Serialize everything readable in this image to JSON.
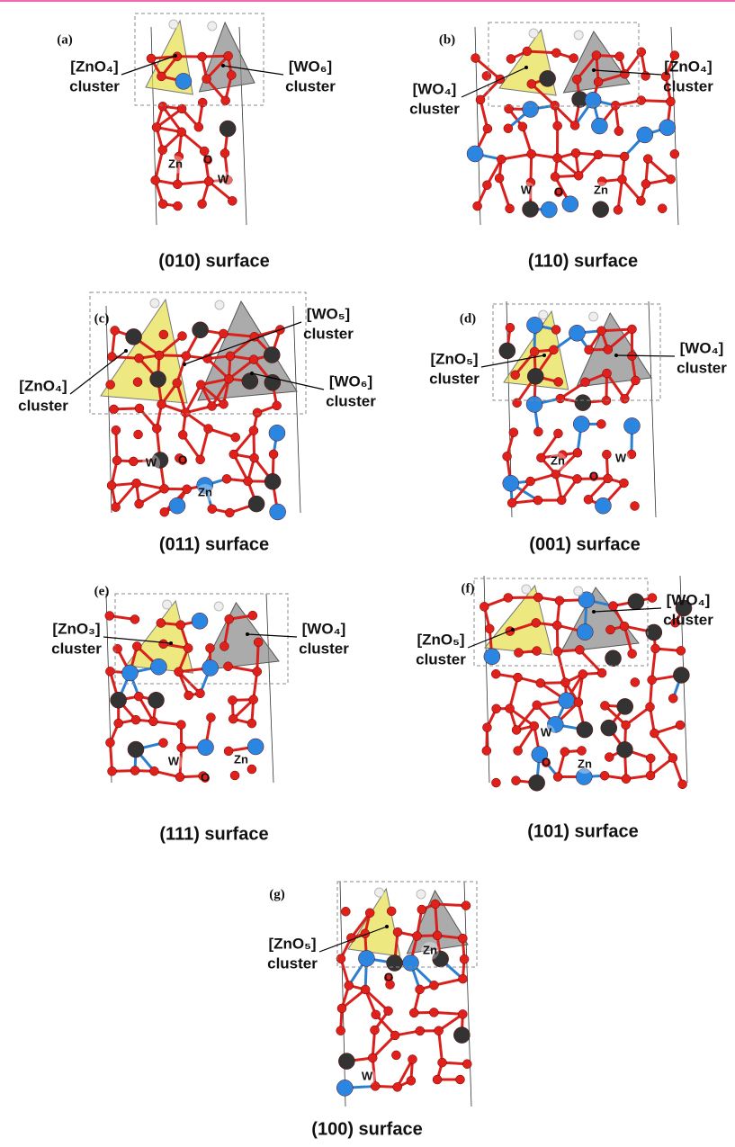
{
  "panels": [
    {
      "label": "(a)",
      "clusters": [
        {
          "formula": "[ZnO₄]",
          "word": "cluster"
        },
        {
          "formula": "[WO₆]",
          "word": "cluster"
        }
      ],
      "atoms": [
        "Zn",
        "O",
        "W"
      ],
      "caption": "(010) surface"
    },
    {
      "label": "(b)",
      "clusters": [
        {
          "formula": "[WO₄]",
          "word": "cluster"
        },
        {
          "formula": "[ZnO₄]",
          "word": "cluster"
        }
      ],
      "atoms": [
        "W",
        "O",
        "Zn"
      ],
      "caption": "(110) surface"
    },
    {
      "label": "(c)",
      "clusters": [
        {
          "formula": "[ZnO₄]",
          "word": "cluster"
        },
        {
          "formula": "[WO₅]",
          "word": "cluster"
        },
        {
          "formula": "[WO₆]",
          "word": "cluster"
        }
      ],
      "atoms": [
        "W",
        "O",
        "Zn"
      ],
      "caption": "(011) surface"
    },
    {
      "label": "(d)",
      "clusters": [
        {
          "formula": "[ZnO₅]",
          "word": "cluster"
        },
        {
          "formula": "[WO₄]",
          "word": "cluster"
        }
      ],
      "atoms": [
        "Zn",
        "O",
        "W"
      ],
      "caption": "(001) surface"
    },
    {
      "label": "(e)",
      "clusters": [
        {
          "formula": "[ZnO₃]",
          "word": "cluster"
        },
        {
          "formula": "[WO₄]",
          "word": "cluster"
        }
      ],
      "atoms": [
        "W",
        "O",
        "Zn"
      ],
      "caption": "(111) surface"
    },
    {
      "label": "(f)",
      "clusters": [
        {
          "formula": "[ZnO₅]",
          "word": "cluster"
        },
        {
          "formula": "[WO₄]",
          "word": "cluster"
        }
      ],
      "atoms": [
        "W",
        "O",
        "Zn"
      ],
      "caption": "(101) surface"
    },
    {
      "label": "(g)",
      "clusters": [
        {
          "formula": "[ZnO₅]",
          "word": "cluster"
        }
      ],
      "atoms": [
        "Zn",
        "O",
        "W"
      ],
      "caption": "(100) surface"
    }
  ]
}
